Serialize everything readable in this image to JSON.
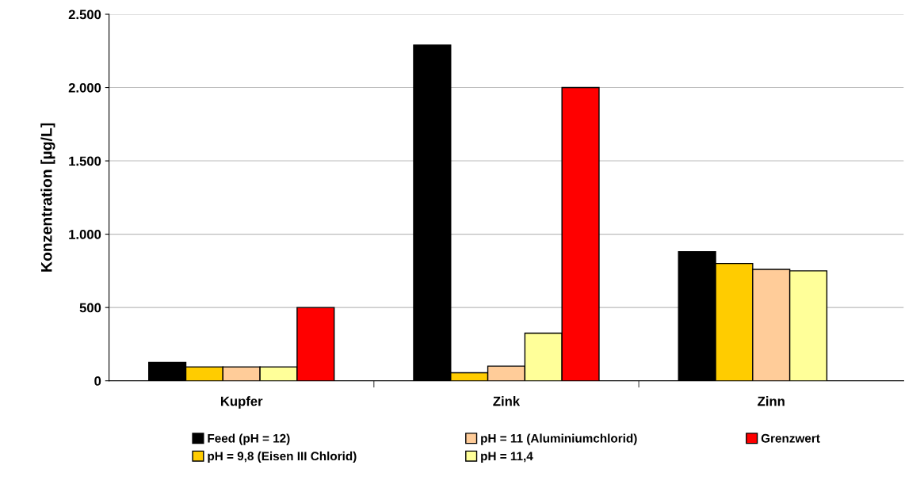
{
  "chart_data": {
    "type": "bar",
    "ylabel": "Konzentration [µg/L]",
    "categories": [
      "Kupfer",
      "Zink",
      "Zinn"
    ],
    "series": [
      {
        "name": "Feed (pH = 12)",
        "color": "#000000",
        "values": [
          125,
          2290,
          880
        ]
      },
      {
        "name": "pH = 9,8 (Eisen III Chlorid)",
        "color": "#ffcc00",
        "values": [
          95,
          55,
          800
        ]
      },
      {
        "name": "pH = 11 (Aluminiumchlorid)",
        "color": "#ffcc99",
        "values": [
          95,
          100,
          760
        ]
      },
      {
        "name": "pH = 11,4",
        "color": "#ffff99",
        "values": [
          95,
          325,
          750
        ]
      },
      {
        "name": "Grenzwert",
        "color": "#ff0000",
        "values": [
          500,
          2000,
          null
        ]
      }
    ],
    "ylim": [
      0,
      2500
    ],
    "yticks": [
      {
        "value": 0,
        "label": "0"
      },
      {
        "value": 500,
        "label": "500"
      },
      {
        "value": 1000,
        "label": "1.000"
      },
      {
        "value": 1500,
        "label": "1.500"
      },
      {
        "value": 2000,
        "label": "2.000"
      },
      {
        "value": 2500,
        "label": "2.500"
      }
    ],
    "grid": "y",
    "legend": "bottom"
  }
}
